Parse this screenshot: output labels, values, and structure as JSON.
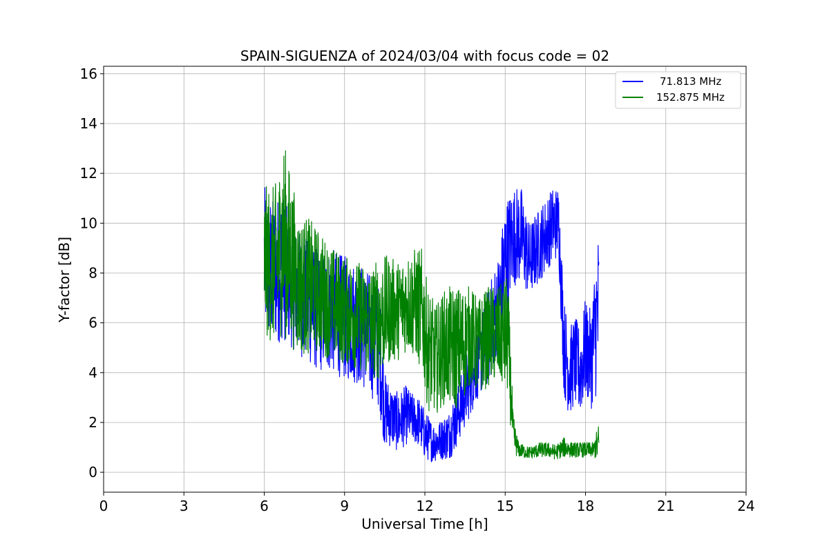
{
  "chart_data": {
    "type": "line",
    "title": "SPAIN-SIGUENZA of 2024/03/04 with focus code = 02",
    "xlabel": "Universal Time [h]",
    "ylabel": "Y-factor [dB]",
    "xlim": [
      0,
      24
    ],
    "ylim": [
      -0.8,
      16.3
    ],
    "xticks": [
      "0",
      "3",
      "6",
      "9",
      "12",
      "15",
      "18",
      "21",
      "24"
    ],
    "yticks": [
      "0",
      "2",
      "4",
      "6",
      "8",
      "10",
      "12",
      "14",
      "16"
    ],
    "grid": true,
    "legend_position": "top-right",
    "series": [
      {
        "name": "71.813 MHz",
        "color": "#0000ff",
        "x": [
          6.0,
          6.3,
          6.7,
          7.0,
          7.5,
          8.0,
          8.5,
          9.0,
          9.5,
          10.0,
          10.3,
          10.5,
          10.8,
          11.0,
          11.3,
          11.5,
          11.8,
          12.0,
          12.3,
          12.6,
          12.9,
          13.1,
          13.3,
          13.6,
          14.0,
          14.4,
          14.8,
          15.0,
          15.3,
          15.6,
          15.9,
          16.2,
          16.5,
          16.8,
          17.0,
          17.2,
          17.4,
          17.6,
          17.8,
          18.0,
          18.2,
          18.4,
          18.5
        ],
        "y_mid": [
          8.5,
          8.0,
          8.3,
          7.5,
          7.0,
          6.5,
          6.5,
          6.2,
          6.0,
          5.5,
          5.0,
          2.5,
          2.2,
          2.0,
          2.3,
          2.2,
          2.0,
          1.5,
          1.2,
          1.3,
          1.5,
          2.0,
          2.5,
          3.5,
          4.5,
          5.5,
          7.0,
          8.5,
          9.5,
          9.5,
          8.5,
          9.0,
          9.5,
          10.0,
          10.0,
          5.0,
          4.0,
          4.5,
          4.0,
          5.0,
          4.5,
          6.0,
          6.5
        ],
        "y_spread": [
          3.0,
          3.0,
          3.0,
          2.5,
          2.5,
          2.5,
          2.5,
          2.5,
          2.5,
          2.5,
          2.5,
          1.5,
          1.2,
          1.2,
          1.2,
          1.0,
          1.0,
          1.0,
          0.8,
          0.8,
          1.0,
          1.2,
          1.2,
          1.5,
          1.5,
          2.0,
          2.0,
          2.5,
          2.0,
          2.0,
          1.5,
          1.5,
          1.5,
          1.5,
          1.5,
          2.0,
          1.8,
          1.8,
          1.8,
          2.0,
          2.0,
          3.0,
          3.5
        ]
      },
      {
        "name": "152.875 MHz",
        "color": "#008000",
        "x": [
          6.0,
          6.3,
          6.5,
          6.7,
          7.0,
          7.3,
          7.6,
          8.0,
          8.5,
          9.0,
          9.5,
          10.0,
          10.3,
          10.6,
          11.0,
          11.3,
          11.6,
          11.9,
          12.1,
          12.4,
          12.7,
          13.0,
          13.3,
          13.7,
          14.0,
          14.4,
          14.8,
          15.1,
          15.3,
          15.5,
          15.8,
          16.0,
          16.3,
          16.6,
          16.9,
          17.2,
          17.5,
          17.8,
          18.0,
          18.3,
          18.5
        ],
        "y_mid": [
          8.5,
          8.3,
          8.5,
          9.5,
          8.5,
          7.5,
          7.5,
          7.3,
          6.8,
          6.5,
          6.3,
          6.0,
          6.2,
          6.5,
          6.5,
          6.8,
          6.8,
          6.5,
          5.0,
          4.5,
          5.0,
          5.0,
          5.0,
          5.5,
          5.0,
          5.5,
          5.5,
          5.5,
          1.5,
          0.9,
          0.8,
          0.8,
          0.9,
          0.9,
          0.8,
          1.0,
          0.9,
          0.9,
          0.9,
          0.9,
          1.2
        ],
        "y_spread": [
          3.0,
          3.2,
          3.2,
          4.0,
          3.5,
          2.8,
          2.8,
          2.5,
          2.3,
          2.2,
          2.2,
          2.3,
          2.5,
          2.2,
          2.0,
          2.0,
          2.2,
          2.5,
          2.5,
          2.2,
          2.3,
          2.5,
          2.5,
          2.0,
          2.0,
          2.0,
          2.0,
          2.5,
          0.8,
          0.3,
          0.25,
          0.25,
          0.3,
          0.3,
          0.3,
          0.4,
          0.3,
          0.3,
          0.3,
          0.3,
          0.8
        ]
      }
    ]
  }
}
